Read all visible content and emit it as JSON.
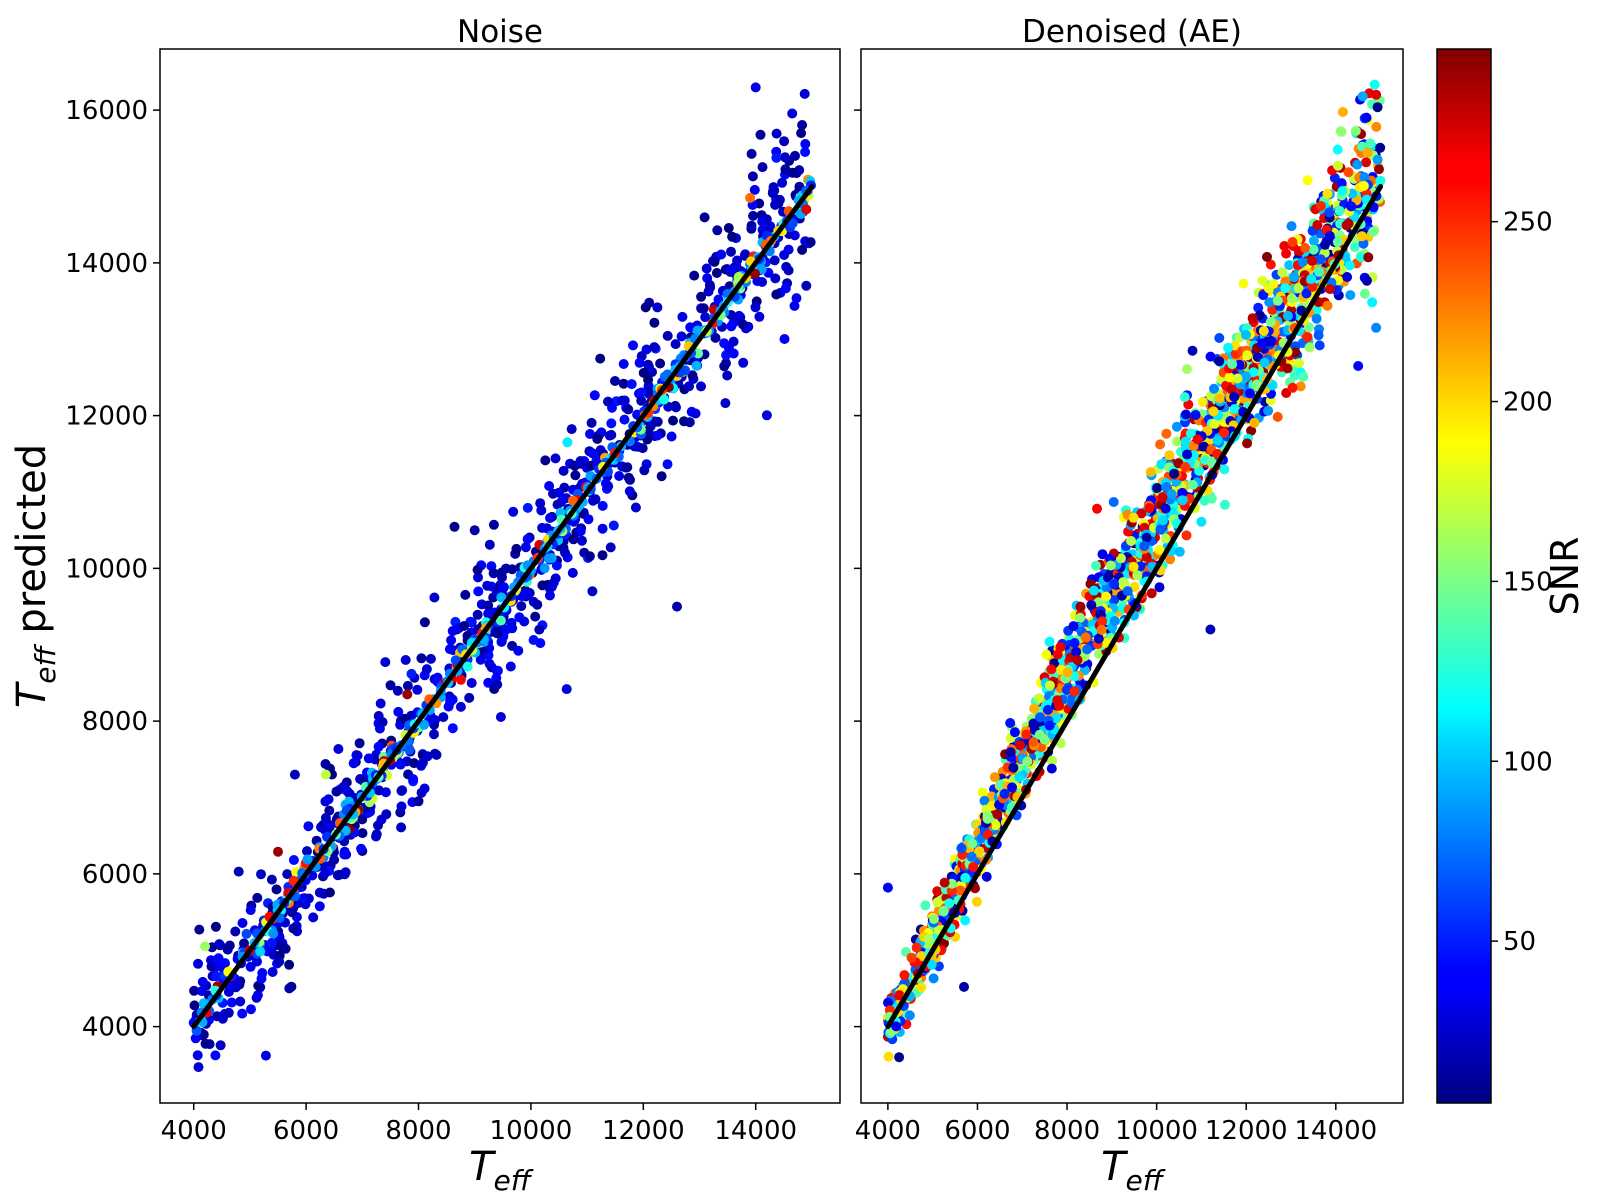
{
  "figure": {
    "left_title": "Noise",
    "right_title": "Denoised (AE)",
    "ylabel_sym": "T",
    "ylabel_sub": "eff",
    "ylabel_rest": " predicted",
    "xlabel_sym": "T",
    "xlabel_sub": "eff",
    "colorbar_label": "SNR"
  },
  "chart_data": [
    {
      "type": "scatter",
      "title": "Noise",
      "xlabel": "T_eff",
      "ylabel": "T_eff predicted",
      "xlim": [
        3400,
        15500
      ],
      "ylim": [
        3000,
        16800
      ],
      "xticks": [
        4000,
        6000,
        8000,
        10000,
        12000,
        14000
      ],
      "yticks": [
        4000,
        6000,
        8000,
        10000,
        12000,
        14000,
        16000
      ],
      "colormap": "jet",
      "color_variable": "SNR",
      "reference_line": {
        "x": [
          4000,
          15000
        ],
        "y": [
          4000,
          15000
        ],
        "color": "#000000"
      },
      "scatter_params": {
        "n": 1300,
        "sigma_base": 260,
        "sigma_low_snr": 480,
        "snr_mostly": "low"
      },
      "sample_points": [
        {
          "x": 4000,
          "y": 4050,
          "snr": 40
        },
        {
          "x": 4100,
          "y": 5270,
          "snr": 10
        },
        {
          "x": 4200,
          "y": 5050,
          "snr": 160
        },
        {
          "x": 4800,
          "y": 6030,
          "snr": 20
        },
        {
          "x": 5500,
          "y": 6290,
          "snr": 290
        },
        {
          "x": 5700,
          "y": 4500,
          "snr": 15
        },
        {
          "x": 5800,
          "y": 7300,
          "snr": 20
        },
        {
          "x": 6350,
          "y": 7300,
          "snr": 170
        },
        {
          "x": 7800,
          "y": 8350,
          "snr": 290
        },
        {
          "x": 8000,
          "y": 6950,
          "snr": 15
        },
        {
          "x": 9400,
          "y": 8480,
          "snr": 20
        },
        {
          "x": 9000,
          "y": 10500,
          "snr": 15
        },
        {
          "x": 10650,
          "y": 11650,
          "snr": 110
        },
        {
          "x": 12600,
          "y": 9500,
          "snr": 15
        },
        {
          "x": 14700,
          "y": 15400,
          "snr": 15
        },
        {
          "x": 13900,
          "y": 14850,
          "snr": 230
        },
        {
          "x": 14900,
          "y": 13700,
          "snr": 20
        },
        {
          "x": 14900,
          "y": 14700,
          "snr": 270
        }
      ]
    },
    {
      "type": "scatter",
      "title": "Denoised (AE)",
      "xlabel": "T_eff",
      "ylabel": "",
      "xlim": [
        3400,
        15500
      ],
      "ylim": [
        3000,
        16800
      ],
      "xticks": [
        4000,
        6000,
        8000,
        10000,
        12000,
        14000
      ],
      "yticks": [
        4000,
        6000,
        8000,
        10000,
        12000,
        14000,
        16000
      ],
      "colormap": "jet",
      "color_variable": "SNR",
      "reference_line": {
        "x": [
          4000,
          15000
        ],
        "y": [
          4000,
          15000
        ],
        "color": "#000000"
      },
      "scatter_params": {
        "n": 2000,
        "sigma_base": 280,
        "sigma_low_snr": 300,
        "bias_peak": 650,
        "snr_mostly": "uniform"
      },
      "sample_points": [
        {
          "x": 4000,
          "y": 5820,
          "snr": 40
        },
        {
          "x": 4250,
          "y": 3600,
          "snr": 10
        },
        {
          "x": 5700,
          "y": 4520,
          "snr": 15
        },
        {
          "x": 8300,
          "y": 9500,
          "snr": 290
        },
        {
          "x": 10800,
          "y": 12850,
          "snr": 20
        },
        {
          "x": 11200,
          "y": 9200,
          "snr": 20
        },
        {
          "x": 14600,
          "y": 16180,
          "snr": 90
        },
        {
          "x": 14900,
          "y": 16200,
          "snr": 270
        },
        {
          "x": 14500,
          "y": 12650,
          "snr": 40
        },
        {
          "x": 14900,
          "y": 13150,
          "snr": 80
        }
      ]
    }
  ],
  "colorbar": {
    "label": "SNR",
    "range": [
      5,
      298
    ],
    "ticks": [
      50,
      100,
      150,
      200,
      250
    ]
  }
}
